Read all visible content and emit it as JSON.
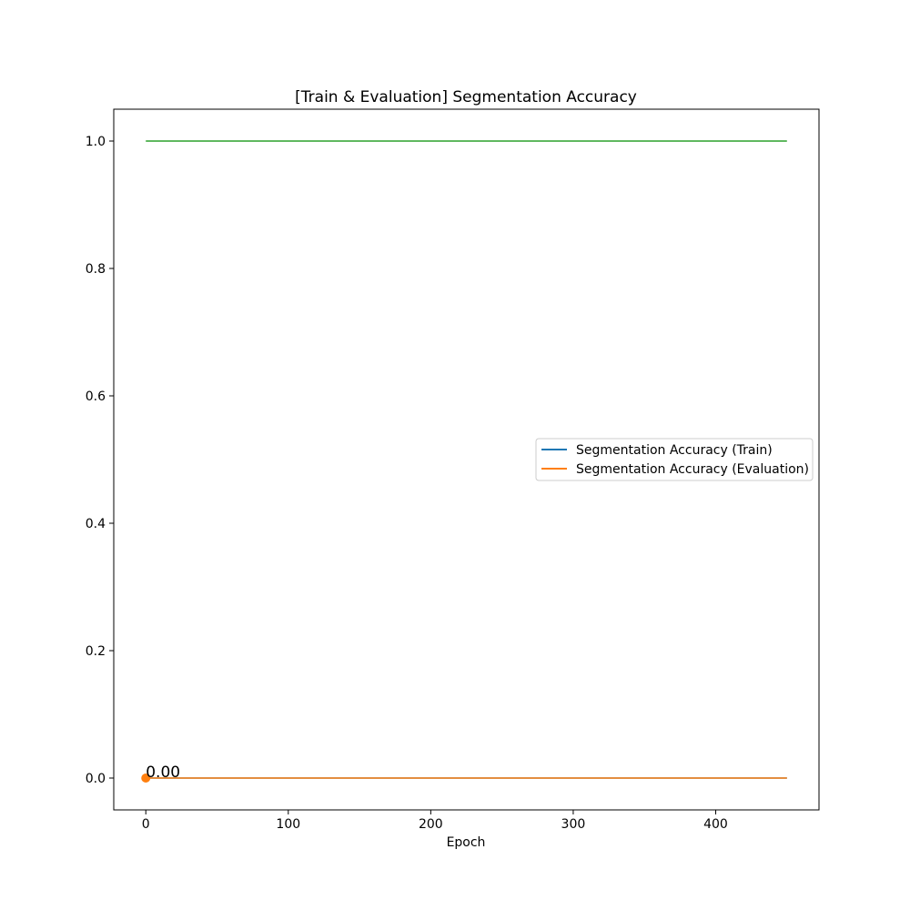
{
  "chart_data": {
    "type": "line",
    "title": "[Train & Evaluation] Segmentation Accuracy",
    "xlabel": "Epoch",
    "ylabel": "",
    "xlim": [
      -22.5,
      472.5
    ],
    "ylim": [
      -0.05,
      1.05
    ],
    "xticks": [
      0,
      100,
      200,
      300,
      400
    ],
    "yticks": [
      0.0,
      0.2,
      0.4,
      0.6,
      0.8,
      1.0
    ],
    "xtick_labels": [
      "0",
      "100",
      "200",
      "300",
      "400"
    ],
    "ytick_labels": [
      "0.0",
      "0.2",
      "0.4",
      "0.6",
      "0.8",
      "1.0"
    ],
    "series": [
      {
        "name": "Segmentation Accuracy (Train)",
        "color": "#1f77b4",
        "x": [
          0,
          450
        ],
        "y": [
          0,
          0
        ],
        "in_legend": true
      },
      {
        "name": "Segmentation Accuracy (Evaluation)",
        "color": "#ff7f0e",
        "x": [
          0,
          450
        ],
        "y": [
          0,
          0
        ],
        "in_legend": true
      },
      {
        "color": "#2ca02c",
        "x": [
          0,
          450
        ],
        "y": [
          1,
          1
        ],
        "in_legend": false
      }
    ],
    "marker": {
      "x": 0,
      "y": 0,
      "color": "#ff7f0e"
    },
    "annotation": {
      "text": "0.00",
      "x": 0,
      "y": 0
    },
    "legend": {
      "placement": "center-right"
    },
    "grid": false
  }
}
